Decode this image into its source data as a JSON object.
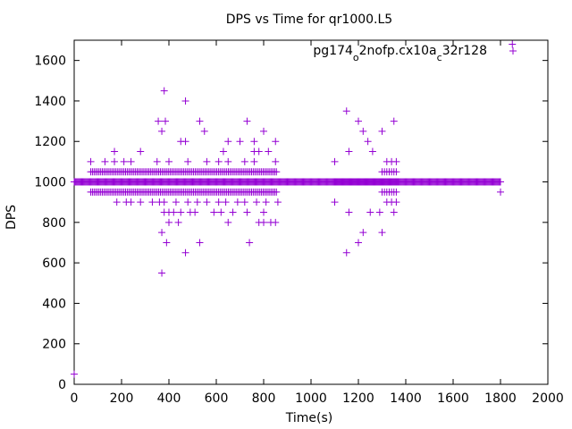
{
  "chart_data": {
    "type": "scatter",
    "title": "DPS vs Time for qr1000.L5",
    "xlabel": "Time(s)",
    "ylabel": "DPS",
    "xlim": [
      0,
      2000
    ],
    "ylim": [
      0,
      1700
    ],
    "xticks": [
      0,
      200,
      400,
      600,
      800,
      1000,
      1200,
      1400,
      1600,
      1800,
      2000
    ],
    "yticks": [
      0,
      200,
      400,
      600,
      800,
      1000,
      1200,
      1400,
      1600
    ],
    "grid": false,
    "legend_position": "top-right",
    "marker": "plus",
    "series": [
      {
        "name": "pg174_o2nofp.cx10a_c32r128",
        "legend_parts": [
          {
            "text": "pg174",
            "sub": false
          },
          {
            "text": "o",
            "sub": true
          },
          {
            "text": "2nofp.cx10a",
            "sub": false
          },
          {
            "text": "c",
            "sub": true
          },
          {
            "text": "32r128",
            "sub": false
          }
        ],
        "color": "#9400d3",
        "points": [
          [
            0,
            50
          ],
          [
            380,
            1450
          ],
          [
            470,
            1400
          ],
          [
            355,
            1300
          ],
          [
            385,
            1300
          ],
          [
            530,
            1300
          ],
          [
            730,
            1300
          ],
          [
            1150,
            1350
          ],
          [
            1200,
            1300
          ],
          [
            1350,
            1300
          ],
          [
            1300,
            1250
          ],
          [
            370,
            1250
          ],
          [
            550,
            1250
          ],
          [
            800,
            1250
          ],
          [
            1220,
            1250
          ],
          [
            450,
            1200
          ],
          [
            470,
            1200
          ],
          [
            650,
            1200
          ],
          [
            700,
            1200
          ],
          [
            760,
            1200
          ],
          [
            850,
            1200
          ],
          [
            1240,
            1200
          ],
          [
            170,
            1150
          ],
          [
            280,
            1150
          ],
          [
            630,
            1150
          ],
          [
            760,
            1150
          ],
          [
            780,
            1150
          ],
          [
            820,
            1150
          ],
          [
            1160,
            1150
          ],
          [
            1260,
            1150
          ],
          [
            70,
            1100
          ],
          [
            130,
            1100
          ],
          [
            170,
            1100
          ],
          [
            210,
            1100
          ],
          [
            240,
            1100
          ],
          [
            350,
            1100
          ],
          [
            400,
            1100
          ],
          [
            480,
            1100
          ],
          [
            560,
            1100
          ],
          [
            610,
            1100
          ],
          [
            650,
            1100
          ],
          [
            720,
            1100
          ],
          [
            760,
            1100
          ],
          [
            850,
            1100
          ],
          [
            1100,
            1100
          ],
          [
            1320,
            1100
          ],
          [
            1340,
            1100
          ],
          [
            1360,
            1100
          ],
          [
            1100,
            900
          ],
          [
            1320,
            900
          ],
          [
            1340,
            900
          ],
          [
            1360,
            900
          ],
          [
            1160,
            850
          ],
          [
            1250,
            850
          ],
          [
            1290,
            850
          ],
          [
            1350,
            850
          ],
          [
            370,
            750
          ],
          [
            1220,
            750
          ],
          [
            1300,
            750
          ],
          [
            390,
            700
          ],
          [
            530,
            700
          ],
          [
            740,
            700
          ],
          [
            1200,
            700
          ],
          [
            470,
            650
          ],
          [
            1150,
            650
          ],
          [
            370,
            550
          ],
          [
            1850,
            1680
          ],
          [
            1800,
            950
          ],
          [
            1800,
            1000
          ]
        ],
        "bands": [
          {
            "y": 1000,
            "x_from": 0,
            "x_to": 1800,
            "step": 4
          },
          {
            "y": 1050,
            "x_from": 70,
            "x_to": 860,
            "step": 7
          },
          {
            "y": 950,
            "x_from": 70,
            "x_to": 860,
            "step": 7
          },
          {
            "y": 1000,
            "x_from": 1100,
            "x_to": 1360,
            "step": 4
          },
          {
            "y": 950,
            "x_from": 1300,
            "x_to": 1360,
            "step": 10
          },
          {
            "y": 1050,
            "x_from": 1300,
            "x_to": 1360,
            "step": 10
          }
        ],
        "sparse_rows": [
          {
            "y": 900,
            "xs": [
              180,
              220,
              240,
              280,
              330,
              360,
              380,
              430,
              480,
              520,
              560,
              610,
              640,
              690,
              720,
              770,
              810,
              860
            ]
          },
          {
            "y": 850,
            "xs": [
              380,
              400,
              420,
              450,
              490,
              510,
              590,
              620,
              670,
              730,
              800
            ]
          },
          {
            "y": 800,
            "xs": [
              400,
              440,
              650,
              780,
              800,
              830,
              850
            ]
          }
        ]
      }
    ]
  }
}
